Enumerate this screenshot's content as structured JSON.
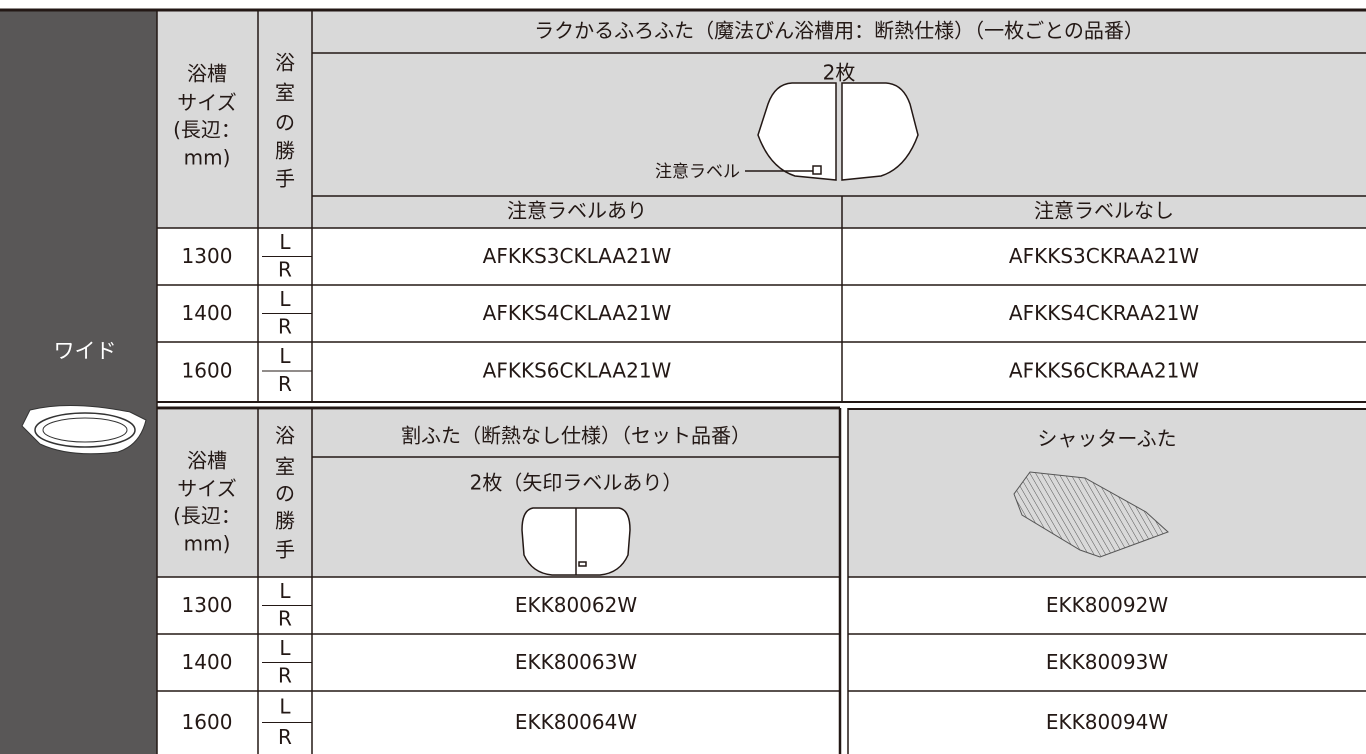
{
  "side_label": "ワイド",
  "table1": {
    "title": "ラクかるふろふた（魔法びん浴槽用：断熱仕様）（一枚ごとの品番）",
    "size_header": [
      "浴槽",
      "サイズ",
      "(長辺：",
      "mm)"
    ],
    "hand_header": [
      "浴",
      "室",
      "の",
      "勝",
      "手"
    ],
    "count": "2枚",
    "callout": "注意ラベル",
    "columns": [
      "注意ラベルあり",
      "注意ラベルなし"
    ],
    "rows": [
      {
        "size": "1300",
        "hand": [
          "L",
          "R"
        ],
        "codes": [
          "AFKKS3CKLAA21W",
          "AFKKS3CKRAA21W"
        ]
      },
      {
        "size": "1400",
        "hand": [
          "L",
          "R"
        ],
        "codes": [
          "AFKKS4CKLAA21W",
          "AFKKS4CKRAA21W"
        ]
      },
      {
        "size": "1600",
        "hand": [
          "L",
          "R"
        ],
        "codes": [
          "AFKKS6CKLAA21W",
          "AFKKS6CKRAA21W"
        ]
      }
    ]
  },
  "table2": {
    "size_header": [
      "浴槽",
      "サイズ",
      "(長辺：",
      "mm)"
    ],
    "hand_header": [
      "浴",
      "室",
      "の",
      "勝",
      "手"
    ],
    "columns": [
      {
        "title": "割ふた（断熱なし仕様）（セット品番）",
        "subtitle": "2枚（矢印ラベルあり）"
      },
      {
        "title": "シャッターふた"
      }
    ],
    "rows": [
      {
        "size": "1300",
        "hand": [
          "L",
          "R"
        ],
        "codes": [
          "EKK80062W",
          "EKK80092W"
        ]
      },
      {
        "size": "1400",
        "hand": [
          "L",
          "R"
        ],
        "codes": [
          "EKK80063W",
          "EKK80093W"
        ]
      },
      {
        "size": "1600",
        "hand": [
          "L",
          "R"
        ],
        "codes": [
          "EKK80064W",
          "EKK80094W"
        ]
      }
    ]
  }
}
